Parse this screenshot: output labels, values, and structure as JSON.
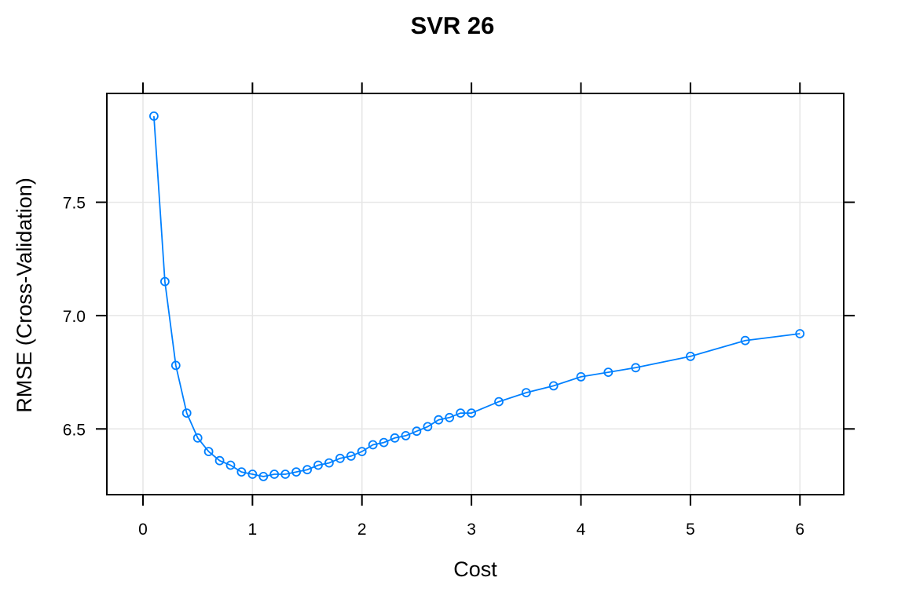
{
  "chart_data": {
    "type": "line",
    "title": "SVR 26",
    "xlabel": "Cost",
    "ylabel": "RMSE (Cross-Validation)",
    "xlim": [
      -0.33,
      6.4
    ],
    "ylim": [
      6.21,
      7.98
    ],
    "xticks": [
      "0",
      "1",
      "2",
      "3",
      "4",
      "5",
      "6"
    ],
    "yticks": [
      "6.5",
      "7.0",
      "7.5"
    ],
    "grid": true,
    "series_color": "#0080FF",
    "marker": "open-circle",
    "series": [
      {
        "x": [
          0.1,
          0.2,
          0.3,
          0.4,
          0.5,
          0.6,
          0.7,
          0.8,
          0.9,
          1.0,
          1.1,
          1.2,
          1.3,
          1.4,
          1.5,
          1.6,
          1.7,
          1.8,
          1.9,
          2.0,
          2.1,
          2.2,
          2.3,
          2.4,
          2.5,
          2.6,
          2.7,
          2.8,
          2.9,
          3.0,
          3.25,
          3.5,
          3.75,
          4.0,
          4.25,
          4.5,
          5.0,
          5.5,
          6.0
        ],
        "values": [
          7.88,
          7.15,
          6.78,
          6.57,
          6.46,
          6.4,
          6.36,
          6.34,
          6.31,
          6.3,
          6.29,
          6.3,
          6.3,
          6.31,
          6.32,
          6.34,
          6.35,
          6.37,
          6.38,
          6.4,
          6.43,
          6.44,
          6.46,
          6.47,
          6.49,
          6.51,
          6.54,
          6.55,
          6.57,
          6.57,
          6.62,
          6.66,
          6.69,
          6.73,
          6.75,
          6.77,
          6.82,
          6.89,
          6.92
        ]
      }
    ]
  }
}
